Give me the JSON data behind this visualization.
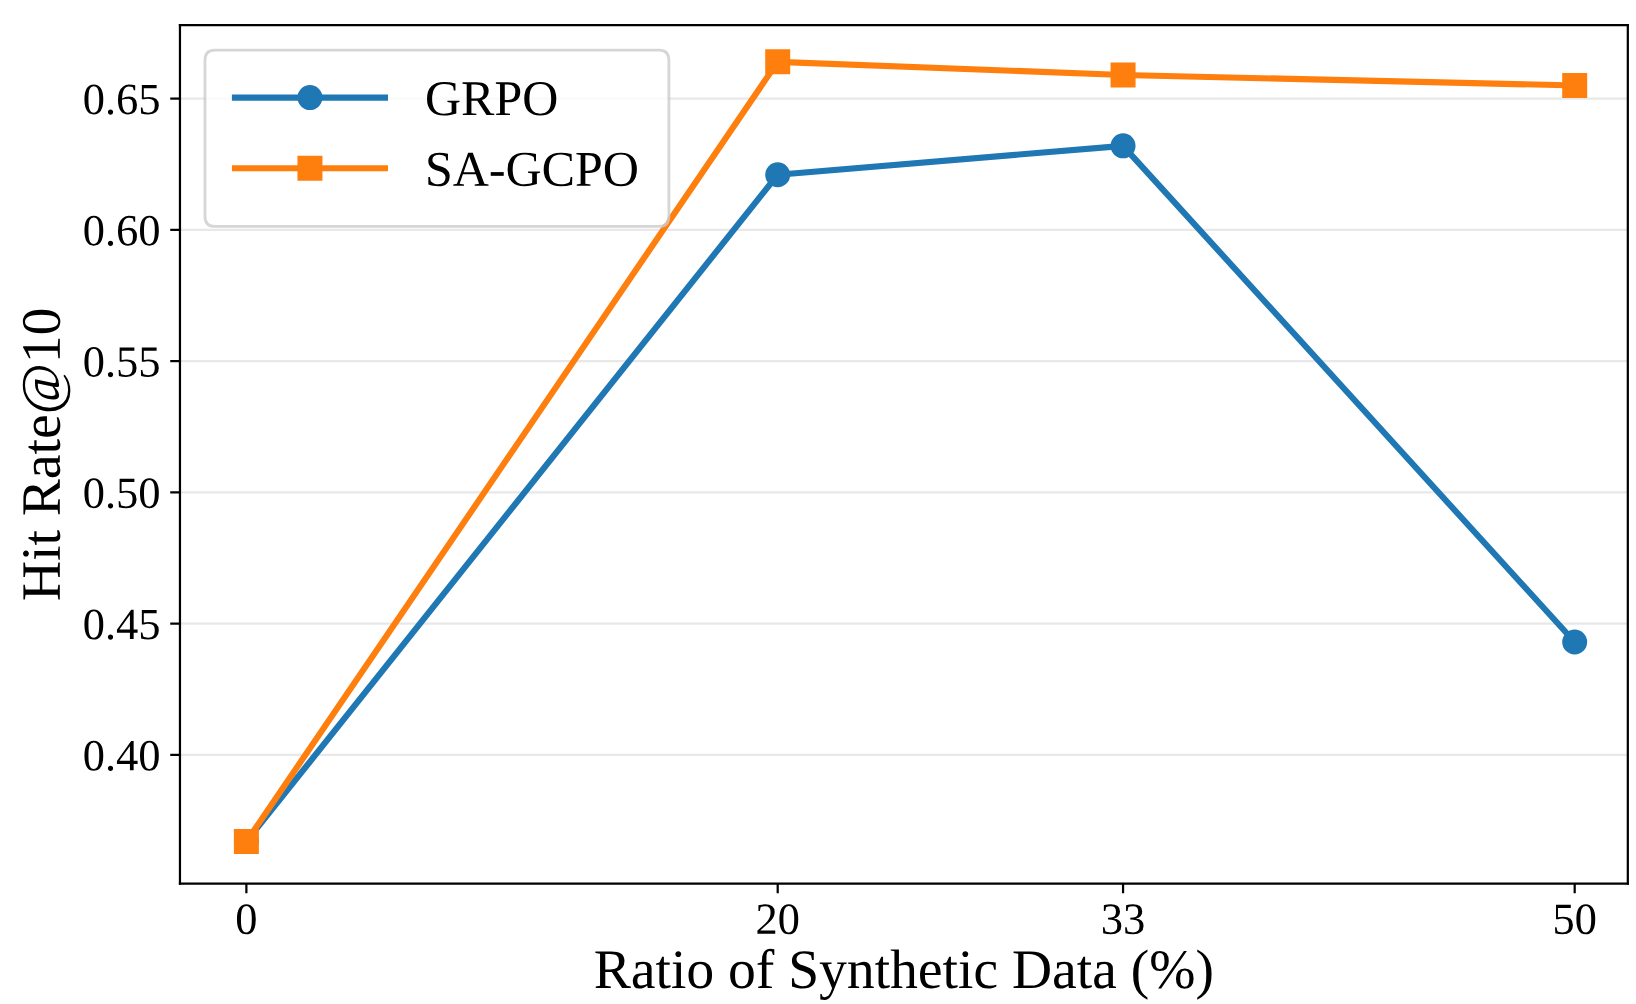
{
  "chart_data": {
    "type": "line",
    "xlabel": "Ratio of Synthetic Data (%)",
    "ylabel": "Hit Rate@10",
    "x": [
      0,
      20,
      33,
      50
    ],
    "series": [
      {
        "name": "GRPO",
        "color": "#1f77b4",
        "marker": "circle",
        "values": [
          0.367,
          0.621,
          0.632,
          0.443
        ]
      },
      {
        "name": "SA-GCPO",
        "color": "#ff7f0e",
        "marker": "square",
        "values": [
          0.367,
          0.664,
          0.659,
          0.655
        ]
      }
    ],
    "xlim": [
      -2.5,
      52
    ],
    "xticks": [
      0,
      20,
      33,
      50
    ],
    "ylim": [
      0.351,
      0.678
    ],
    "yticks": [
      {
        "value": 0.4,
        "label": "0.40"
      },
      {
        "value": 0.45,
        "label": "0.45"
      },
      {
        "value": 0.5,
        "label": "0.50"
      },
      {
        "value": 0.55,
        "label": "0.55"
      },
      {
        "value": 0.6,
        "label": "0.60"
      },
      {
        "value": 0.65,
        "label": "0.65"
      }
    ],
    "grid": "y",
    "legend": "top left",
    "line_style": "solid"
  }
}
